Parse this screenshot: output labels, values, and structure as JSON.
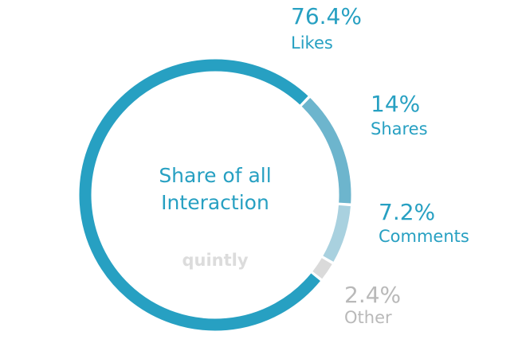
{
  "chart_data": {
    "type": "pie",
    "donut": true,
    "title": [
      "Share of all",
      "Interaction"
    ],
    "watermark": "quintly",
    "categories": [
      "Likes",
      "Shares",
      "Comments",
      "Other"
    ],
    "values": [
      76.4,
      14,
      7.2,
      2.4
    ],
    "value_labels": [
      "76.4%",
      "14%",
      "7.2%",
      "2.4%"
    ],
    "colors": [
      "#27a0c2",
      "#6db5cd",
      "#a9d1df",
      "#dadada"
    ]
  }
}
